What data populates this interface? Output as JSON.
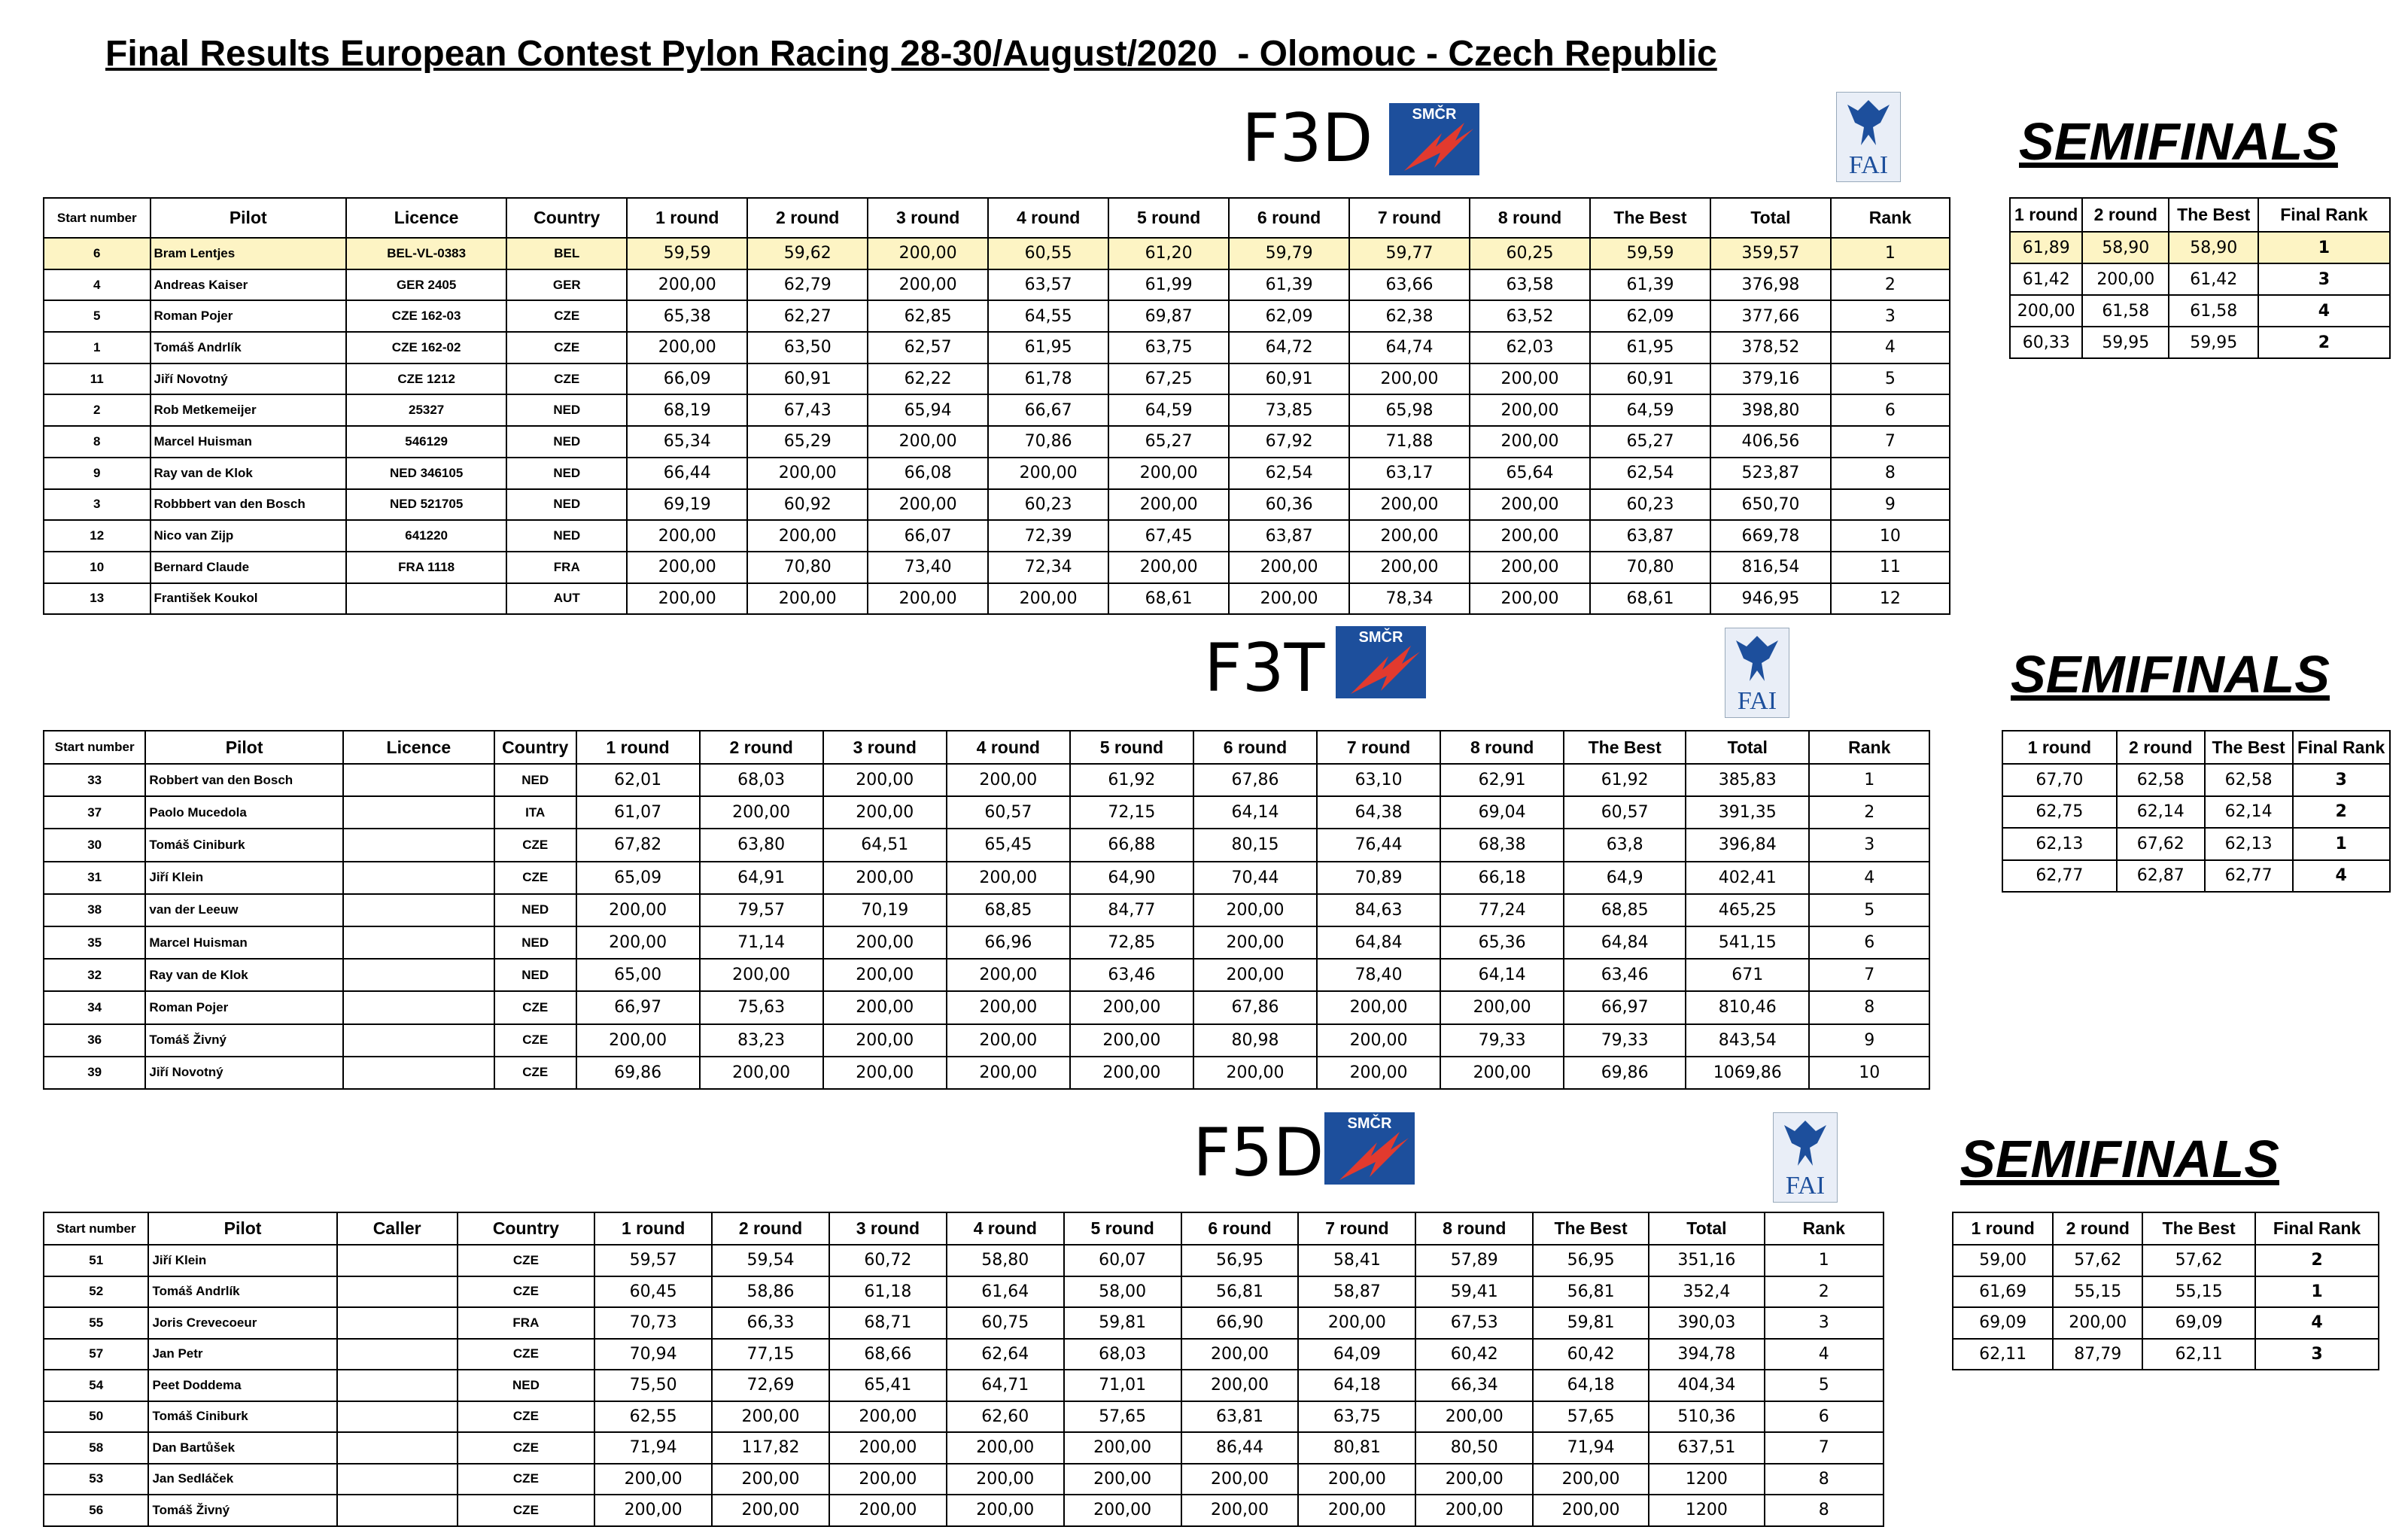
{
  "title": "Final Results European Contest Pylon Racing 28-30/August/2020  - Olomouc - Czech Republic",
  "sections": [
    {
      "name": "F3D",
      "logo_text": "SMČR",
      "fai_text": "FAI",
      "semifinals_title": "SEMIFINALS",
      "columns": [
        "Start number",
        "Pilot",
        "Licence",
        "Country",
        "1 round",
        "2 round",
        "3 round",
        "4 round",
        "5 round",
        "6 round",
        "7 round",
        "8 round",
        "The Best",
        "Total",
        "Rank"
      ],
      "rows": [
        [
          "6",
          "Bram Lentjes",
          "BEL-VL-0383",
          "BEL",
          "59,59",
          "59,62",
          "200,00",
          "60,55",
          "61,20",
          "59,79",
          "59,77",
          "60,25",
          "59,59",
          "359,57",
          "1"
        ],
        [
          "4",
          "Andreas Kaiser",
          "GER 2405",
          "GER",
          "200,00",
          "62,79",
          "200,00",
          "63,57",
          "61,99",
          "61,39",
          "63,66",
          "63,58",
          "61,39",
          "376,98",
          "2"
        ],
        [
          "5",
          "Roman Pojer",
          "CZE 162-03",
          "CZE",
          "65,38",
          "62,27",
          "62,85",
          "64,55",
          "69,87",
          "62,09",
          "62,38",
          "63,52",
          "62,09",
          "377,66",
          "3"
        ],
        [
          "1",
          "Tomáš Andrlík",
          "CZE 162-02",
          "CZE",
          "200,00",
          "63,50",
          "62,57",
          "61,95",
          "63,75",
          "64,72",
          "64,74",
          "62,03",
          "61,95",
          "378,52",
          "4"
        ],
        [
          "11",
          "Jiří Novotný",
          "CZE 1212",
          "CZE",
          "66,09",
          "60,91",
          "62,22",
          "61,78",
          "67,25",
          "60,91",
          "200,00",
          "200,00",
          "60,91",
          "379,16",
          "5"
        ],
        [
          "2",
          "Rob Metkemeijer",
          "25327",
          "NED",
          "68,19",
          "67,43",
          "65,94",
          "66,67",
          "64,59",
          "73,85",
          "65,98",
          "200,00",
          "64,59",
          "398,80",
          "6"
        ],
        [
          "8",
          "Marcel Huisman",
          "546129",
          "NED",
          "65,34",
          "65,29",
          "200,00",
          "70,86",
          "65,27",
          "67,92",
          "71,88",
          "200,00",
          "65,27",
          "406,56",
          "7"
        ],
        [
          "9",
          "Ray van de Klok",
          "NED 346105",
          "NED",
          "66,44",
          "200,00",
          "66,08",
          "200,00",
          "200,00",
          "62,54",
          "63,17",
          "65,64",
          "62,54",
          "523,87",
          "8"
        ],
        [
          "3",
          "Robbbert van den Bosch",
          "NED 521705",
          "NED",
          "69,19",
          "60,92",
          "200,00",
          "60,23",
          "200,00",
          "60,36",
          "200,00",
          "200,00",
          "60,23",
          "650,70",
          "9"
        ],
        [
          "12",
          "Nico van Zijp",
          "641220",
          "NED",
          "200,00",
          "200,00",
          "66,07",
          "72,39",
          "67,45",
          "63,87",
          "200,00",
          "200,00",
          "63,87",
          "669,78",
          "10"
        ],
        [
          "10",
          "Bernard Claude",
          "FRA 1118",
          "FRA",
          "200,00",
          "70,80",
          "73,40",
          "72,34",
          "200,00",
          "200,00",
          "200,00",
          "200,00",
          "70,80",
          "816,54",
          "11"
        ],
        [
          "13",
          "František Koukol",
          null,
          "AUT",
          "200,00",
          "200,00",
          "200,00",
          "200,00",
          "68,61",
          "200,00",
          "78,34",
          "200,00",
          "68,61",
          "946,95",
          "12"
        ]
      ],
      "semi_columns": [
        "1 round",
        "2 round",
        "The Best",
        "Final Rank"
      ],
      "semi_rows": [
        [
          "61,89",
          "58,90",
          "58,90",
          "1"
        ],
        [
          "61,42",
          "200,00",
          "61,42",
          "3"
        ],
        [
          "200,00",
          "61,58",
          "61,58",
          "4"
        ],
        [
          "60,33",
          "59,95",
          "59,95",
          "2"
        ]
      ]
    },
    {
      "name": "F3T",
      "logo_text": "SMČR",
      "fai_text": "FAI",
      "semifinals_title": "SEMIFINALS",
      "columns": [
        "Start number",
        "Pilot",
        "Licence",
        "Country",
        "1 round",
        "2 round",
        "3 round",
        "4 round",
        "5 round",
        "6 round",
        "7 round",
        "8 round",
        "The Best",
        "Total",
        "Rank"
      ],
      "rows": [
        [
          "33",
          "Robbert van den Bosch",
          null,
          "NED",
          "62,01",
          "68,03",
          "200,00",
          "200,00",
          "61,92",
          "67,86",
          "63,10",
          "62,91",
          "61,92",
          "385,83",
          "1"
        ],
        [
          "37",
          "Paolo Mucedola",
          null,
          "ITA",
          "61,07",
          "200,00",
          "200,00",
          "60,57",
          "72,15",
          "64,14",
          "64,38",
          "69,04",
          "60,57",
          "391,35",
          "2"
        ],
        [
          "30",
          "Tomáš Ciniburk",
          null,
          "CZE",
          "67,82",
          "63,80",
          "64,51",
          "65,45",
          "66,88",
          "80,15",
          "76,44",
          "68,38",
          "63,8",
          "396,84",
          "3"
        ],
        [
          "31",
          "Jiří Klein",
          null,
          "CZE",
          "65,09",
          "64,91",
          "200,00",
          "200,00",
          "64,90",
          "70,44",
          "70,89",
          "66,18",
          "64,9",
          "402,41",
          "4"
        ],
        [
          "38",
          "van der Leeuw",
          null,
          "NED",
          "200,00",
          "79,57",
          "70,19",
          "68,85",
          "84,77",
          "200,00",
          "84,63",
          "77,24",
          "68,85",
          "465,25",
          "5"
        ],
        [
          "35",
          "Marcel Huisman",
          null,
          "NED",
          "200,00",
          "71,14",
          "200,00",
          "66,96",
          "72,85",
          "200,00",
          "64,84",
          "65,36",
          "64,84",
          "541,15",
          "6"
        ],
        [
          "32",
          "Ray van de Klok",
          null,
          "NED",
          "65,00",
          "200,00",
          "200,00",
          "200,00",
          "63,46",
          "200,00",
          "78,40",
          "64,14",
          "63,46",
          "671",
          "7"
        ],
        [
          "34",
          "Roman Pojer",
          null,
          "CZE",
          "66,97",
          "75,63",
          "200,00",
          "200,00",
          "200,00",
          "67,86",
          "200,00",
          "200,00",
          "66,97",
          "810,46",
          "8"
        ],
        [
          "36",
          "Tomáš Živný",
          null,
          "CZE",
          "200,00",
          "83,23",
          "200,00",
          "200,00",
          "200,00",
          "80,98",
          "200,00",
          "79,33",
          "79,33",
          "843,54",
          "9"
        ],
        [
          "39",
          "Jiří Novotný",
          null,
          "CZE",
          "69,86",
          "200,00",
          "200,00",
          "200,00",
          "200,00",
          "200,00",
          "200,00",
          "200,00",
          "69,86",
          "1069,86",
          "10"
        ]
      ],
      "semi_columns": [
        "1 round",
        "2 round",
        "The Best",
        "Final Rank"
      ],
      "semi_rows": [
        [
          "67,70",
          "62,58",
          "62,58",
          "3"
        ],
        [
          "62,75",
          "62,14",
          "62,14",
          "2"
        ],
        [
          "62,13",
          "67,62",
          "62,13",
          "1"
        ],
        [
          "62,77",
          "62,87",
          "62,77",
          "4"
        ]
      ]
    },
    {
      "name": "F5D",
      "logo_text": "SMČR",
      "fai_text": "FAI",
      "semifinals_title": "SEMIFINALS",
      "columns": [
        "Start number",
        "Pilot",
        "Caller",
        "Country",
        "1 round",
        "2 round",
        "3 round",
        "4 round",
        "5 round",
        "6 round",
        "7 round",
        "8 round",
        "The Best",
        "Total",
        "Rank"
      ],
      "rows": [
        [
          "51",
          "Jiří Klein",
          null,
          "CZE",
          "59,57",
          "59,54",
          "60,72",
          "58,80",
          "60,07",
          "56,95",
          "58,41",
          "57,89",
          "56,95",
          "351,16",
          "1"
        ],
        [
          "52",
          "Tomáš Andrlík",
          null,
          "CZE",
          "60,45",
          "58,86",
          "61,18",
          "61,64",
          "58,00",
          "56,81",
          "58,87",
          "59,41",
          "56,81",
          "352,4",
          "2"
        ],
        [
          "55",
          "Joris Crevecoeur",
          null,
          "FRA",
          "70,73",
          "66,33",
          "68,71",
          "60,75",
          "59,81",
          "66,90",
          "200,00",
          "67,53",
          "59,81",
          "390,03",
          "3"
        ],
        [
          "57",
          "Jan Petr",
          null,
          "CZE",
          "70,94",
          "77,15",
          "68,66",
          "62,64",
          "68,03",
          "200,00",
          "64,09",
          "60,42",
          "60,42",
          "394,78",
          "4"
        ],
        [
          "54",
          "Peet Doddema",
          null,
          "NED",
          "75,50",
          "72,69",
          "65,41",
          "64,71",
          "71,01",
          "200,00",
          "64,18",
          "66,34",
          "64,18",
          "404,34",
          "5"
        ],
        [
          "50",
          "Tomáš Ciniburk",
          null,
          "CZE",
          "62,55",
          "200,00",
          "200,00",
          "62,60",
          "57,65",
          "63,81",
          "63,75",
          "200,00",
          "57,65",
          "510,36",
          "6"
        ],
        [
          "58",
          "Dan Bartůšek",
          null,
          "CZE",
          "71,94",
          "117,82",
          "200,00",
          "200,00",
          "200,00",
          "86,44",
          "80,81",
          "80,50",
          "71,94",
          "637,51",
          "7"
        ],
        [
          "53",
          "Jan Sedláček",
          null,
          "CZE",
          "200,00",
          "200,00",
          "200,00",
          "200,00",
          "200,00",
          "200,00",
          "200,00",
          "200,00",
          "200,00",
          "1200",
          "8"
        ],
        [
          "56",
          "Tomáš Živný",
          null,
          "CZE",
          "200,00",
          "200,00",
          "200,00",
          "200,00",
          "200,00",
          "200,00",
          "200,00",
          "200,00",
          "200,00",
          "1200",
          "8"
        ]
      ],
      "semi_columns": [
        "1 round",
        "2 round",
        "The Best",
        "Final Rank"
      ],
      "semi_rows": [
        [
          "59,00",
          "57,62",
          "57,62",
          "2"
        ],
        [
          "61,69",
          "55,15",
          "55,15",
          "1"
        ],
        [
          "69,09",
          "200,00",
          "69,09",
          "4"
        ],
        [
          "62,11",
          "87,79",
          "62,11",
          "3"
        ]
      ]
    }
  ]
}
